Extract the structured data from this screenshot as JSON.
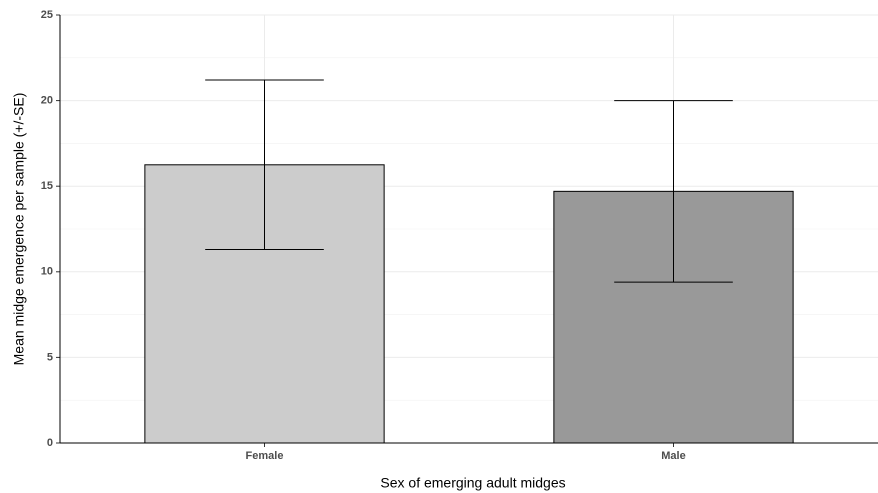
{
  "chart_data": {
    "type": "bar",
    "x_label": "Sex of emerging adult midges",
    "y_label": "Mean midge emergence per sample (+/-SE)",
    "categories": [
      "Female",
      "Male"
    ],
    "values": [
      16.25,
      14.7
    ],
    "errors": [
      4.95,
      5.3
    ],
    "colors": [
      "#cccccc",
      "#999999"
    ],
    "ylim": [
      0,
      25
    ],
    "yticks": [
      0,
      5,
      10,
      15,
      20,
      25
    ],
    "grid": true
  }
}
